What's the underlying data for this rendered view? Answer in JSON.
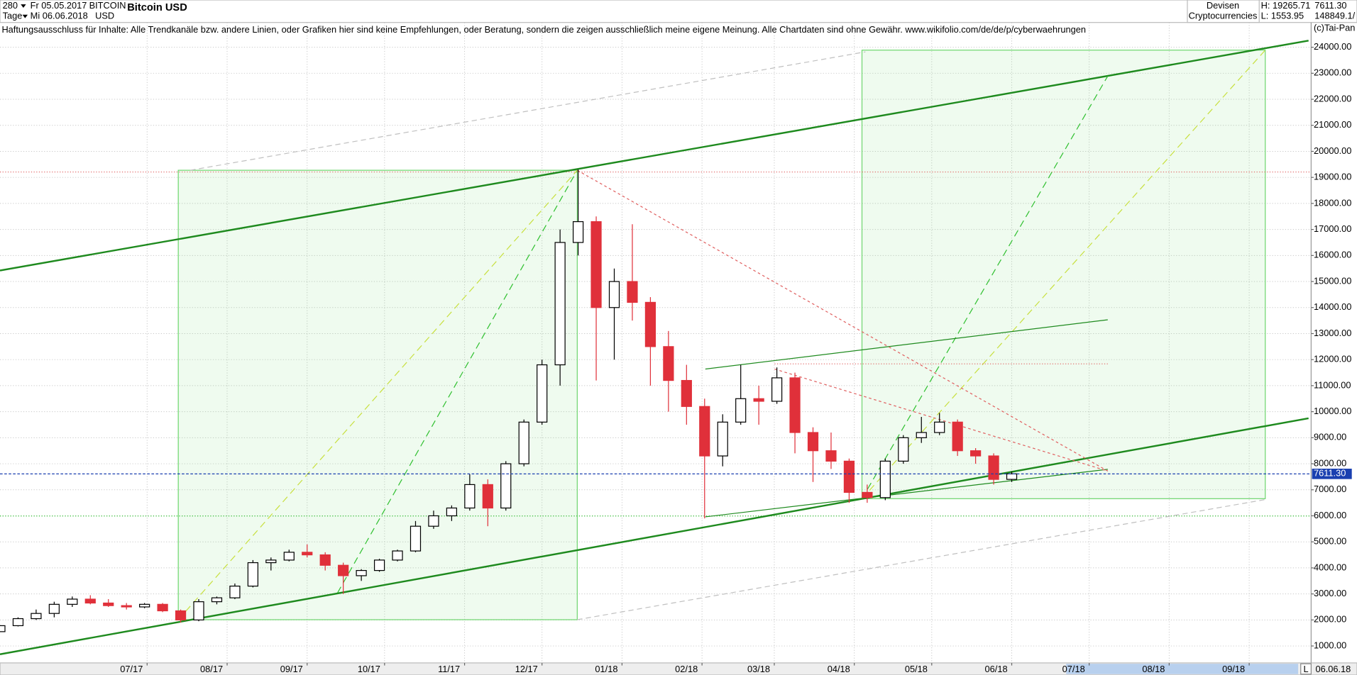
{
  "toolbar": {
    "period": "280",
    "unit": "Tage",
    "from": "Fr 05.05.2017",
    "to": "Mi 06.06.2018",
    "symbol": "BITCOIN",
    "currency": "USD",
    "name": "Bitcoin USD",
    "group": "Devisen",
    "subgroup": "Cryptocurrencies",
    "high": "H: 19265.71",
    "low": "L: 1553.95",
    "last": "7611.30",
    "volume": "148849.1/",
    "scale_mode": "L",
    "date": "06.06.18"
  },
  "chart_data": {
    "type": "candlestick",
    "disclaimer": "Haftungsausschluss für Inhalte: Alle Trendkanäle bzw. andere Linien, oder Grafiken hier sind keine Empfehlungen, oder Beratung, sondern die zeigen ausschließlich meine eigene Meinung. Alle Chartdaten sind ohne Gewähr.  www.wikifolio.com/de/de/p/cyberwaehrungen",
    "copyright": "(c)Tai-Pan",
    "up_color": "#ffffff",
    "down_color": "#e0303a",
    "x": [
      "2017-05-05",
      "2017-05-12",
      "2017-05-19",
      "2017-05-26",
      "2017-06-02",
      "2017-06-09",
      "2017-06-16",
      "2017-06-23",
      "2017-06-30",
      "2017-07-07",
      "2017-07-14",
      "2017-07-21",
      "2017-07-28",
      "2017-08-04",
      "2017-08-11",
      "2017-08-18",
      "2017-08-25",
      "2017-09-01",
      "2017-09-08",
      "2017-09-15",
      "2017-09-22",
      "2017-09-29",
      "2017-10-06",
      "2017-10-13",
      "2017-10-20",
      "2017-10-27",
      "2017-11-03",
      "2017-11-10",
      "2017-11-17",
      "2017-11-24",
      "2017-12-01",
      "2017-12-08",
      "2017-12-15",
      "2017-12-22",
      "2017-12-29",
      "2018-01-05",
      "2018-01-12",
      "2018-01-19",
      "2018-01-26",
      "2018-02-02",
      "2018-02-09",
      "2018-02-16",
      "2018-02-23",
      "2018-03-02",
      "2018-03-09",
      "2018-03-16",
      "2018-03-23",
      "2018-03-30",
      "2018-04-06",
      "2018-04-13",
      "2018-04-20",
      "2018-04-27",
      "2018-05-04",
      "2018-05-11",
      "2018-05-18",
      "2018-05-25",
      "2018-06-01"
    ],
    "open": [
      1550,
      1780,
      2050,
      2250,
      2600,
      2800,
      2650,
      2550,
      2500,
      2600,
      2350,
      2000,
      2700,
      2850,
      3300,
      4200,
      4300,
      4600,
      4500,
      4100,
      3700,
      3900,
      4300,
      4650,
      5600,
      6000,
      6300,
      7200,
      6300,
      8000,
      9600,
      11800,
      16500,
      17300,
      14000,
      15000,
      14200,
      12500,
      11200,
      10200,
      8300,
      9600,
      10500,
      10400,
      11300,
      9200,
      8500,
      8100,
      6900,
      6700,
      8100,
      9000,
      9200,
      9600,
      8500,
      8300,
      7400
    ],
    "high": [
      1800,
      2100,
      2400,
      2700,
      2900,
      2950,
      2800,
      2650,
      2650,
      2650,
      2400,
      2800,
      2900,
      3400,
      4300,
      4400,
      4700,
      4900,
      4600,
      4200,
      3950,
      4350,
      4700,
      5800,
      6200,
      6400,
      7600,
      7400,
      8100,
      9700,
      12000,
      17000,
      19300,
      17500,
      15500,
      17200,
      14400,
      13100,
      11800,
      10500,
      9900,
      11800,
      11000,
      11700,
      11500,
      9400,
      9200,
      8200,
      7200,
      8200,
      9100,
      9800,
      9950,
      9700,
      8600,
      8400,
      7700
    ],
    "low": [
      1540,
      1750,
      2000,
      2100,
      2500,
      2600,
      2500,
      2400,
      2450,
      2300,
      1900,
      1950,
      2600,
      2800,
      3250,
      3900,
      4250,
      4400,
      3900,
      3000,
      3500,
      3850,
      4250,
      4600,
      5500,
      5800,
      6200,
      5600,
      6200,
      7900,
      9500,
      11000,
      16000,
      11200,
      12000,
      13500,
      11000,
      10000,
      9500,
      5900,
      7900,
      9500,
      9500,
      10300,
      8400,
      7300,
      7800,
      6500,
      6500,
      6600,
      8000,
      8800,
      9100,
      8300,
      8000,
      7200,
      7300
    ],
    "close": [
      1780,
      2050,
      2250,
      2600,
      2800,
      2650,
      2550,
      2500,
      2600,
      2350,
      2000,
      2700,
      2850,
      3300,
      4200,
      4300,
      4600,
      4500,
      4100,
      3700,
      3900,
      4300,
      4650,
      5600,
      6000,
      6300,
      7200,
      6300,
      8000,
      9600,
      11800,
      16500,
      17300,
      14000,
      15000,
      14200,
      12500,
      11200,
      10200,
      8300,
      9600,
      10500,
      10400,
      11300,
      9200,
      8500,
      8100,
      6900,
      6700,
      8100,
      9000,
      9200,
      9600,
      8500,
      8300,
      7400,
      7611.3
    ],
    "last_price": {
      "value": 7611.3,
      "label": "7611.30"
    },
    "xlim": [
      "2017-05-05",
      "2018-09-25"
    ],
    "xticks": [
      {
        "value": "2017-07-01",
        "label": "07/17"
      },
      {
        "value": "2017-08-01",
        "label": "08/17"
      },
      {
        "value": "2017-09-01",
        "label": "09/17"
      },
      {
        "value": "2017-10-01",
        "label": "10/17"
      },
      {
        "value": "2017-11-01",
        "label": "11/17"
      },
      {
        "value": "2017-12-01",
        "label": "12/17"
      },
      {
        "value": "2018-01-01",
        "label": "01/18"
      },
      {
        "value": "2018-02-01",
        "label": "02/18"
      },
      {
        "value": "2018-03-01",
        "label": "03/18"
      },
      {
        "value": "2018-04-01",
        "label": "04/18"
      },
      {
        "value": "2018-05-01",
        "label": "05/18"
      },
      {
        "value": "2018-06-01",
        "label": "06/18"
      },
      {
        "value": "2018-07-01",
        "label": "07/18"
      },
      {
        "value": "2018-08-01",
        "label": "08/18"
      },
      {
        "value": "2018-09-01",
        "label": "09/18"
      }
    ],
    "ylim": [
      350,
      25150
    ],
    "yticks": [
      {
        "value": 1000,
        "label": "1000.00"
      },
      {
        "value": 2000,
        "label": "2000.00"
      },
      {
        "value": 3000,
        "label": "3000.00"
      },
      {
        "value": 4000,
        "label": "4000.00"
      },
      {
        "value": 5000,
        "label": "5000.00"
      },
      {
        "value": 6000,
        "label": "6000.00"
      },
      {
        "value": 7000,
        "label": "7000.00"
      },
      {
        "value": 8000,
        "label": "8000.00"
      },
      {
        "value": 9000,
        "label": "9000.00"
      },
      {
        "value": 10000,
        "label": "10000.00"
      },
      {
        "value": 11000,
        "label": "11000.00"
      },
      {
        "value": 12000,
        "label": "12000.00"
      },
      {
        "value": 13000,
        "label": "13000.00"
      },
      {
        "value": 14000,
        "label": "14000.00"
      },
      {
        "value": 15000,
        "label": "15000.00"
      },
      {
        "value": 16000,
        "label": "16000.00"
      },
      {
        "value": 17000,
        "label": "17000.00"
      },
      {
        "value": 18000,
        "label": "18000.00"
      },
      {
        "value": 19000,
        "label": "19000.00"
      },
      {
        "value": 20000,
        "label": "20000.00"
      },
      {
        "value": 21000,
        "label": "21000.00"
      },
      {
        "value": 22000,
        "label": "22000.00"
      },
      {
        "value": 23000,
        "label": "23000.00"
      },
      {
        "value": 24000,
        "label": "24000.00"
      }
    ],
    "grid": true
  }
}
